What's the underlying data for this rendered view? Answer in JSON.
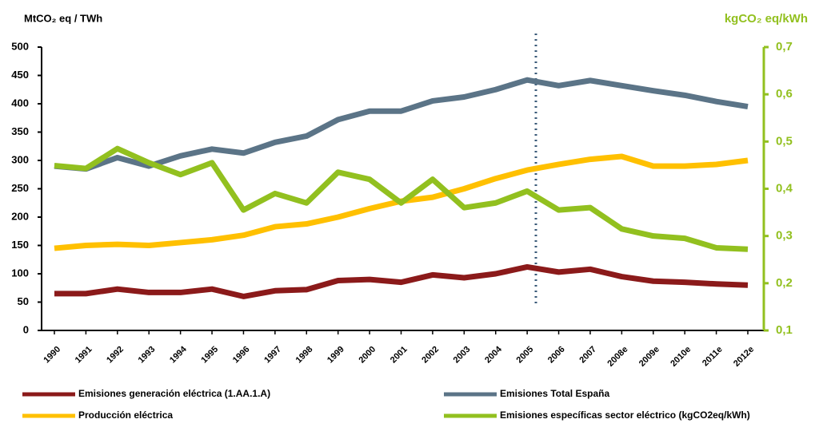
{
  "chart_data": {
    "type": "line",
    "y_label": "MtCO₂ eq / TWh",
    "y2_label": "kgCO₂ eq/kWh",
    "categories": [
      "1990",
      "1991",
      "1992",
      "1993",
      "1994",
      "1995",
      "1996",
      "1997",
      "1998",
      "1999",
      "2000",
      "2001",
      "2002",
      "2003",
      "2004",
      "2005",
      "2006",
      "2007",
      "2008e",
      "2009e",
      "2010e",
      "2011e",
      "2012e"
    ],
    "series": [
      {
        "name": "Emisiones generación eléctrica (1.AA.1.A)",
        "color": "#8b1a1a",
        "values": [
          65,
          65,
          73,
          67,
          67,
          73,
          60,
          70,
          72,
          88,
          90,
          85,
          98,
          93,
          100,
          112,
          103,
          108,
          95,
          87,
          85,
          82,
          80
        ]
      },
      {
        "name": "Emisiones Total España",
        "color": "#5b7487",
        "values": [
          290,
          285,
          305,
          290,
          308,
          320,
          313,
          332,
          343,
          372,
          387,
          387,
          405,
          412,
          425,
          442,
          432,
          441,
          432,
          423,
          415,
          404,
          395
        ]
      },
      {
        "name": "Producción eléctrica",
        "color": "#ffc000",
        "values": [
          145,
          150,
          152,
          150,
          155,
          160,
          168,
          183,
          188,
          200,
          215,
          228,
          235,
          250,
          268,
          283,
          293,
          302,
          307,
          290,
          290,
          293,
          300
        ]
      },
      {
        "name": "Emisiones específicas sector eléctrico (kgCO2eq/kWh)",
        "color": "#92c01f",
        "axis": "y2",
        "values": [
          0.449,
          0.443,
          0.485,
          0.455,
          0.43,
          0.455,
          0.355,
          0.39,
          0.37,
          0.435,
          0.42,
          0.37,
          0.42,
          0.36,
          0.37,
          0.395,
          0.355,
          0.36,
          0.315,
          0.3,
          0.295,
          0.275,
          0.272
        ]
      }
    ],
    "ylim": [
      0,
      500
    ],
    "yticks": [
      0,
      50,
      100,
      150,
      200,
      250,
      300,
      350,
      400,
      450,
      500
    ],
    "y2lim": [
      0.1,
      0.7
    ],
    "y2ticks": [
      {
        "value": 0.1,
        "label": "0,1"
      },
      {
        "value": 0.2,
        "label": "0,2"
      },
      {
        "value": 0.3,
        "label": "0,3"
      },
      {
        "value": 0.4,
        "label": "0,4"
      },
      {
        "value": 0.5,
        "label": "0,5"
      },
      {
        "value": 0.6,
        "label": "0,6"
      },
      {
        "value": 0.7,
        "label": "0,7"
      }
    ],
    "y2_color": "#92c01f"
  }
}
